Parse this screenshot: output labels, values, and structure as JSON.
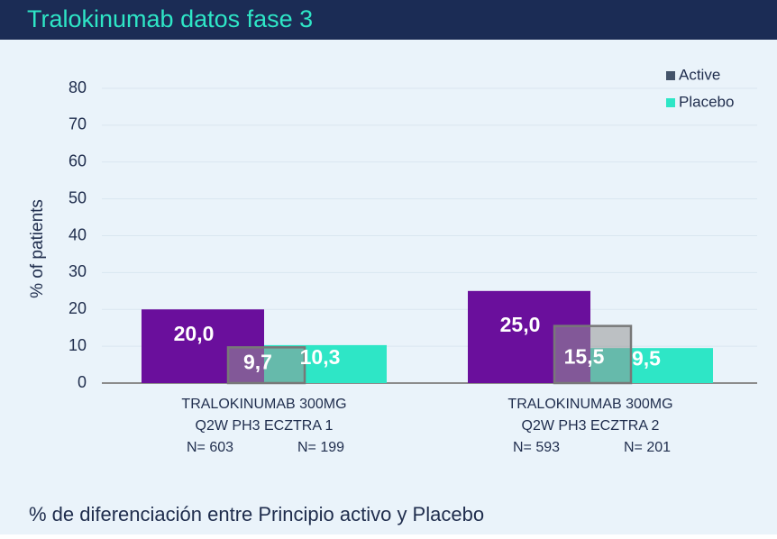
{
  "chart_data": {
    "type": "bar",
    "title": "Tralokinumab datos fase 3",
    "ylabel": "% of patients",
    "footer": "% de diferenciación entre Principio activo y Placebo",
    "categories": [
      [
        "TRALOKINUMAB 300MG",
        "Q2W PH3 ECZTRA 1"
      ],
      [
        "TRALOKINUMAB 300MG",
        "Q2W PH3 ECZTRA 2"
      ]
    ],
    "series": [
      {
        "name": "Active",
        "color": "#6a0f9c",
        "legend_color": "#44546a",
        "values": [
          20.0,
          25.0
        ],
        "value_labels": [
          "20,0",
          "25,0"
        ],
        "n_labels": [
          "N= 603",
          "N= 593"
        ]
      },
      {
        "name": "Placebo",
        "color": "#2ee6c6",
        "legend_color": "#2ee6c6",
        "values": [
          10.3,
          9.5
        ],
        "value_labels": [
          "10,3",
          "9,5"
        ],
        "n_labels": [
          "N= 199",
          "N= 201"
        ]
      }
    ],
    "difference": {
      "values": [
        9.7,
        15.5
      ],
      "value_labels": [
        "9,7",
        "15,5"
      ],
      "color": "rgba(150,150,150,0.55)"
    },
    "ylim": [
      0,
      80
    ],
    "yticks": [
      0,
      10,
      20,
      30,
      40,
      50,
      60,
      70,
      80
    ],
    "grid": true,
    "legend": "upper right"
  }
}
